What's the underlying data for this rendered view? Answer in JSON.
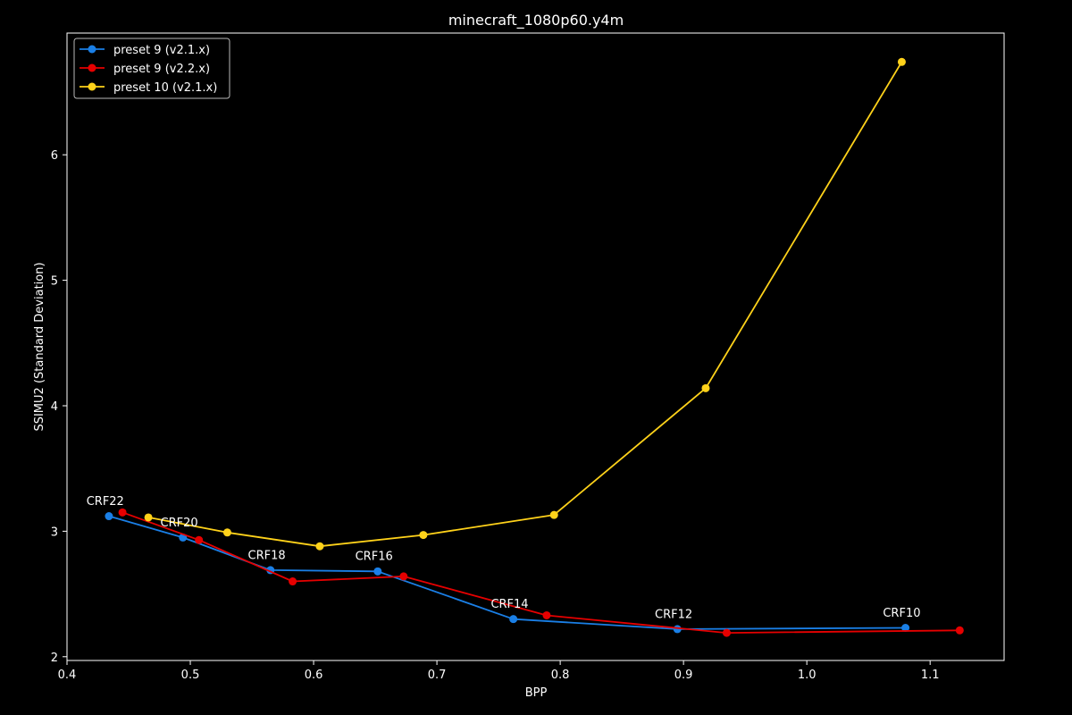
{
  "chart_data": {
    "type": "line",
    "title": "minecraft_1080p60.y4m",
    "xlabel": "BPP",
    "ylabel": "SSIMU2 (Standard Deviation)",
    "xlim": [
      0.4,
      1.16
    ],
    "ylim": [
      1.97,
      6.97
    ],
    "xticks": [
      0.4,
      0.5,
      0.6,
      0.7,
      0.8,
      0.9,
      1.0,
      1.1
    ],
    "xtick_labels": [
      "0.4",
      "0.5",
      "0.6",
      "0.7",
      "0.8",
      "0.9",
      "1.0",
      "1.1"
    ],
    "yticks": [
      2,
      3,
      4,
      5,
      6
    ],
    "ytick_labels": [
      "2",
      "3",
      "4",
      "5",
      "6"
    ],
    "grid": false,
    "legend_position": "top-left",
    "background": "#000000",
    "foreground": "#ffffff",
    "series": [
      {
        "name": "preset 9 (v2.1.x)",
        "color": "#1a7fe6",
        "x": [
          0.434,
          0.494,
          0.565,
          0.652,
          0.762,
          0.895,
          1.08
        ],
        "y": [
          3.12,
          2.95,
          2.69,
          2.68,
          2.3,
          2.22,
          2.23
        ]
      },
      {
        "name": "preset 9 (v2.2.x)",
        "color": "#e60000",
        "x": [
          0.445,
          0.507,
          0.583,
          0.673,
          0.789,
          0.935,
          1.124
        ],
        "y": [
          3.15,
          2.93,
          2.6,
          2.64,
          2.33,
          2.19,
          2.21
        ]
      },
      {
        "name": "preset 10 (v2.1.x)",
        "color": "#ffd21a",
        "x": [
          0.466,
          0.53,
          0.605,
          0.689,
          0.795,
          0.918,
          1.077
        ],
        "y": [
          3.11,
          2.99,
          2.88,
          2.97,
          3.13,
          4.14,
          6.74
        ]
      }
    ],
    "annotations": [
      {
        "text": "CRF22",
        "x": 0.431,
        "y": 3.21
      },
      {
        "text": "CRF20",
        "x": 0.491,
        "y": 3.04
      },
      {
        "text": "CRF18",
        "x": 0.562,
        "y": 2.78
      },
      {
        "text": "CRF16",
        "x": 0.649,
        "y": 2.77
      },
      {
        "text": "CRF14",
        "x": 0.759,
        "y": 2.39
      },
      {
        "text": "CRF12",
        "x": 0.892,
        "y": 2.31
      },
      {
        "text": "CRF10",
        "x": 1.077,
        "y": 2.32
      }
    ]
  }
}
